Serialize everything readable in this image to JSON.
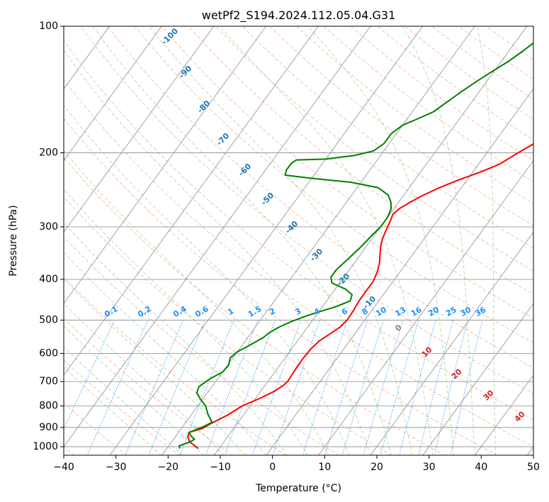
{
  "chart_data": {
    "type": "line",
    "title": "wetPf2_S194.2024.112.05.04.G31",
    "xlabel": "Temperature (°C)",
    "ylabel": "Pressure (hPa)",
    "xlim": [
      -40,
      50
    ],
    "ylim": [
      1050,
      100
    ],
    "y_scale": "log",
    "x_ticks": [
      "−40",
      "−30",
      "−20",
      "−10",
      "0",
      "10",
      "20",
      "30",
      "40",
      "50"
    ],
    "y_ticks": [
      "1000",
      "900",
      "800",
      "700",
      "600",
      "500",
      "400",
      "300",
      "200",
      "100"
    ],
    "grid": true,
    "series": [
      {
        "color": "#ff0000",
        "points": [
          [
            -14,
            1010
          ],
          [
            -15,
            995
          ],
          [
            -16.5,
            975
          ],
          [
            -17.5,
            950
          ],
          [
            -18,
            925
          ],
          [
            -16,
            905
          ],
          [
            -15,
            880
          ],
          [
            -14,
            860
          ],
          [
            -13,
            840
          ],
          [
            -11.5,
            800
          ],
          [
            -9,
            765
          ],
          [
            -7.5,
            740
          ],
          [
            -6.5,
            715
          ],
          [
            -6.2,
            700
          ],
          [
            -6.4,
            660
          ],
          [
            -6.5,
            620
          ],
          [
            -6.3,
            585
          ],
          [
            -5.8,
            560
          ],
          [
            -4.8,
            540
          ],
          [
            -3.8,
            520
          ],
          [
            -3.4,
            500
          ],
          [
            -3.5,
            475
          ],
          [
            -3.8,
            450
          ],
          [
            -3.8,
            425
          ],
          [
            -3.8,
            405
          ],
          [
            -4.3,
            385
          ],
          [
            -5.2,
            365
          ],
          [
            -6.2,
            350
          ],
          [
            -7.2,
            335
          ],
          [
            -8,
            320
          ],
          [
            -8.5,
            305
          ],
          [
            -9,
            290
          ],
          [
            -9.4,
            280
          ],
          [
            -9,
            272
          ],
          [
            -7.8,
            262
          ],
          [
            -6.2,
            252
          ],
          [
            -4.2,
            242
          ],
          [
            -1.6,
            232
          ],
          [
            1.5,
            222
          ],
          [
            4,
            213
          ],
          [
            6,
            200
          ],
          [
            7.8,
            190
          ],
          [
            10,
            178
          ],
          [
            11.8,
            166
          ],
          [
            13.2,
            155
          ],
          [
            14.6,
            143
          ],
          [
            15.8,
            133
          ],
          [
            17.6,
            124
          ],
          [
            20,
            117
          ],
          [
            22.5,
            110
          ],
          [
            24.5,
            104
          ],
          [
            26,
            101
          ],
          [
            27,
            100
          ]
        ]
      },
      {
        "color": "#008000",
        "points": [
          [
            -17.5,
            1010
          ],
          [
            -18,
            995
          ],
          [
            -16.5,
            975
          ],
          [
            -16,
            960
          ],
          [
            -17,
            945
          ],
          [
            -18,
            925
          ],
          [
            -17,
            910
          ],
          [
            -16,
            895
          ],
          [
            -15,
            875
          ],
          [
            -16,
            855
          ],
          [
            -17,
            835
          ],
          [
            -18.5,
            800
          ],
          [
            -20.5,
            770
          ],
          [
            -22,
            745
          ],
          [
            -22.5,
            720
          ],
          [
            -21.5,
            690
          ],
          [
            -20,
            665
          ],
          [
            -19.8,
            640
          ],
          [
            -20.5,
            615
          ],
          [
            -20,
            595
          ],
          [
            -19,
            580
          ],
          [
            -18,
            565
          ],
          [
            -17,
            550
          ],
          [
            -16.5,
            535
          ],
          [
            -15.5,
            520
          ],
          [
            -14,
            505
          ],
          [
            -12,
            490
          ],
          [
            -10,
            478
          ],
          [
            -7.5,
            465
          ],
          [
            -5.5,
            450
          ],
          [
            -6,
            435
          ],
          [
            -8,
            422
          ],
          [
            -11.5,
            408
          ],
          [
            -12.5,
            395
          ],
          [
            -12.5,
            380
          ],
          [
            -12,
            365
          ],
          [
            -11.5,
            350
          ],
          [
            -11,
            335
          ],
          [
            -10.5,
            315
          ],
          [
            -10,
            300
          ],
          [
            -10,
            285
          ],
          [
            -10.5,
            272
          ],
          [
            -11.5,
            262
          ],
          [
            -13,
            252
          ],
          [
            -16,
            242
          ],
          [
            -22,
            235
          ],
          [
            -30,
            230
          ],
          [
            -35.5,
            226
          ],
          [
            -36,
            220
          ],
          [
            -36,
            212
          ],
          [
            -35.5,
            208
          ],
          [
            -30,
            207
          ],
          [
            -25,
            203
          ],
          [
            -22,
            198
          ],
          [
            -21,
            190
          ],
          [
            -21,
            180
          ],
          [
            -20,
            172
          ],
          [
            -18,
            166
          ],
          [
            -16,
            160
          ],
          [
            -14.8,
            152
          ],
          [
            -13.4,
            143
          ],
          [
            -11.9,
            135
          ],
          [
            -10.1,
            127
          ],
          [
            -8.6,
            121
          ],
          [
            -7.4,
            115
          ],
          [
            -6.3,
            109
          ],
          [
            -5.3,
            104
          ],
          [
            -4.7,
            100
          ]
        ]
      }
    ],
    "dry_adiabat_labels": [
      "-100",
      "-90",
      "-80",
      "-70",
      "-60",
      "-50",
      "-40",
      "-30",
      "-20",
      "-10",
      "0",
      "10",
      "20",
      "30",
      "40"
    ],
    "mixing_ratio_labels": [
      "0.1",
      "0.2",
      "0.4",
      "0.6",
      "1",
      "1.5",
      "2",
      "3",
      "4",
      "6",
      "8",
      "10",
      "13",
      "16",
      "20",
      "25",
      "30",
      "36"
    ]
  }
}
